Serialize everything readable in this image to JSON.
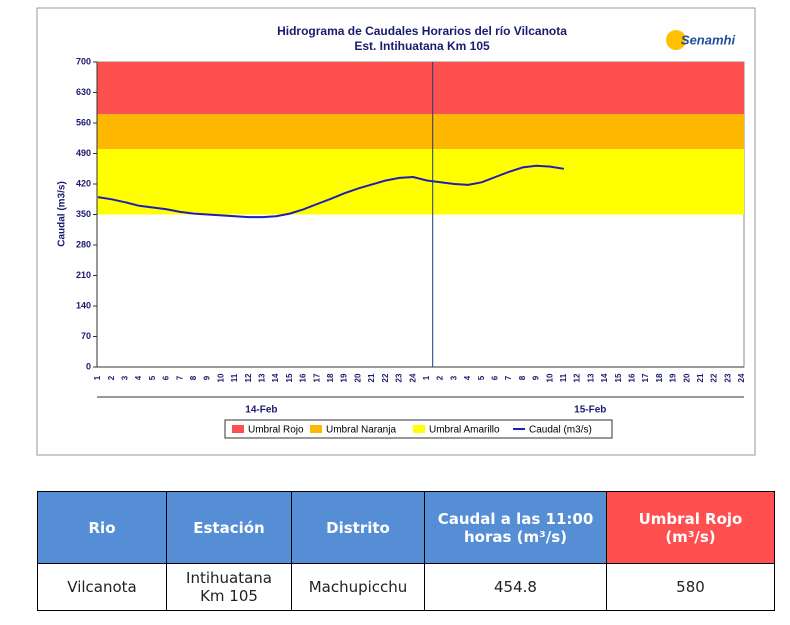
{
  "chart_data": {
    "type": "line",
    "title": "Hidrograma de Caudales Horarios del río Vilcanota",
    "subtitle": "Est. Intihuatana Km 105",
    "logo": "Senamhi",
    "ylabel": "Caudal  (m3/s)",
    "ylim": [
      0,
      700
    ],
    "yticks": [
      0,
      70,
      140,
      210,
      280,
      350,
      420,
      490,
      560,
      630,
      700
    ],
    "categories": [
      "1",
      "2",
      "3",
      "4",
      "5",
      "6",
      "7",
      "8",
      "9",
      "10",
      "11",
      "12",
      "13",
      "14",
      "15",
      "16",
      "17",
      "18",
      "19",
      "20",
      "21",
      "22",
      "23",
      "24",
      "1",
      "2",
      "3",
      "4",
      "5",
      "6",
      "7",
      "8",
      "9",
      "10",
      "11",
      "12",
      "13",
      "14",
      "15",
      "16",
      "17",
      "18",
      "19",
      "20",
      "21",
      "22",
      "23",
      "24"
    ],
    "groups": [
      "14-Feb",
      "15-Feb"
    ],
    "bands": [
      {
        "name": "Umbral Rojo",
        "color": "#ff5050",
        "lower": 580,
        "upper": 700
      },
      {
        "name": "Umbral Naranja",
        "color": "#ffb800",
        "lower": 500,
        "upper": 580
      },
      {
        "name": "Umbral Amarillo",
        "color": "#ffff00",
        "lower": 350,
        "upper": 500
      }
    ],
    "series": [
      {
        "name": "Caudal (m3/s)",
        "color": "#1f1fb4",
        "values": [
          390,
          385,
          378,
          370,
          366,
          362,
          356,
          352,
          350,
          348,
          346,
          344,
          344,
          346,
          352,
          362,
          374,
          386,
          399,
          410,
          419,
          428,
          434,
          436,
          428,
          424,
          420,
          418,
          424,
          436,
          448,
          458,
          462,
          460,
          454.8,
          null,
          null,
          null,
          null,
          null,
          null,
          null,
          null,
          null,
          null,
          null,
          null,
          null
        ]
      }
    ]
  },
  "table": {
    "header": [
      "Rio",
      "Estación",
      "Distrito",
      "Caudal a las 11:00 horas (m³/s)",
      "Umbral Rojo (m³/s)"
    ],
    "rows": [
      [
        "Vilcanota",
        "Intihuatana Km 105",
        "Machupicchu",
        "454.8",
        "580"
      ]
    ]
  }
}
